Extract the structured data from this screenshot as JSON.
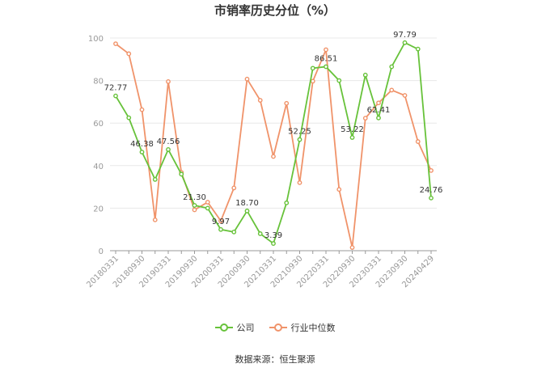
{
  "chart_data": {
    "type": "line",
    "title": "市销率历史分位（%）",
    "x": [
      "20180331",
      "20180630",
      "20180930",
      "20181231",
      "20190331",
      "20190630",
      "20190930",
      "20191231",
      "20200331",
      "20200630",
      "20200930",
      "20201231",
      "20210331",
      "20210630",
      "20210930",
      "20211231",
      "20220331",
      "20220630",
      "20220930",
      "20221231",
      "20230331",
      "20230630",
      "20230930",
      "20231231",
      "20240429"
    ],
    "x_tick_labels": [
      "20180331",
      "20180930",
      "20190331",
      "20190930",
      "20200331",
      "20200930",
      "20210331",
      "20210930",
      "20220331",
      "20220930",
      "20230331",
      "20230930",
      "20240429"
    ],
    "ylim": [
      0,
      100
    ],
    "y_ticks": [
      0,
      20,
      40,
      60,
      80,
      100
    ],
    "grid": true,
    "legend_position": "bottom",
    "series": [
      {
        "name": "公司",
        "color": "#67c23a",
        "values": [
          72.77,
          62.5,
          46.38,
          33.5,
          47.56,
          36.0,
          21.3,
          20.0,
          9.97,
          8.8,
          18.7,
          8.0,
          3.39,
          22.5,
          52.25,
          85.8,
          86.51,
          80.0,
          53.22,
          82.6,
          62.41,
          86.5,
          97.79,
          94.8,
          24.76
        ],
        "labels": {
          "0": "72.77",
          "2": "46.38",
          "4": "47.56",
          "6": "21.30",
          "8": "9.97",
          "10": "18.70",
          "12": "3.39",
          "14": "52.25",
          "16": "86.51",
          "18": "53.22",
          "20": "62.41",
          "22": "97.79",
          "24": "24.76"
        }
      },
      {
        "name": "行业中位数",
        "color": "#f0936a",
        "values": [
          97.3,
          92.6,
          66.3,
          14.5,
          79.5,
          36.8,
          19.2,
          22.8,
          14.0,
          29.5,
          80.7,
          70.7,
          44.3,
          69.3,
          32.0,
          79.7,
          94.5,
          28.8,
          1.5,
          62.3,
          69.5,
          75.5,
          73.0,
          51.3,
          37.7
        ]
      }
    ]
  },
  "source_text": "数据来源：恒生聚源"
}
